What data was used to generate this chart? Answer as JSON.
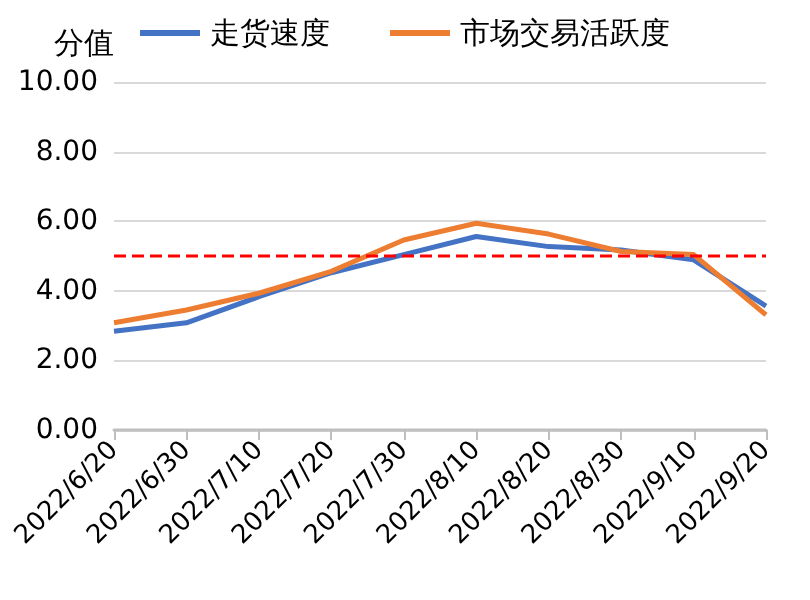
{
  "chart_data": {
    "type": "line",
    "ylabel": "分值",
    "categories": [
      "2022/6/20",
      "2022/6/30",
      "2022/7/10",
      "2022/7/20",
      "2022/7/30",
      "2022/8/10",
      "2022/8/20",
      "2022/8/30",
      "2022/9/10",
      "2022/9/20"
    ],
    "series": [
      {
        "name": "走货速度",
        "color": "#4472c4",
        "values": [
          2.84,
          3.08,
          3.83,
          4.52,
          5.04,
          5.56,
          5.27,
          5.17,
          4.89,
          3.56
        ]
      },
      {
        "name": "市场交易活跃度",
        "color": "#ed7d31",
        "values": [
          3.08,
          3.45,
          3.93,
          4.56,
          5.46,
          5.94,
          5.63,
          5.13,
          5.04,
          3.31
        ]
      }
    ],
    "ylim": [
      0,
      10
    ],
    "yticks": [
      {
        "value": 0,
        "label": "0.00"
      },
      {
        "value": 2,
        "label": "2.00"
      },
      {
        "value": 4,
        "label": "4.00"
      },
      {
        "value": 6,
        "label": "6.00"
      },
      {
        "value": 8,
        "label": "8.00"
      },
      {
        "value": 10,
        "label": "10.00"
      }
    ],
    "ref_lines": [
      {
        "axis": "y",
        "value": 5,
        "color": "#ff0000",
        "line_style": "dashed"
      }
    ],
    "grid": "y",
    "legend": "top",
    "marker": "none"
  }
}
